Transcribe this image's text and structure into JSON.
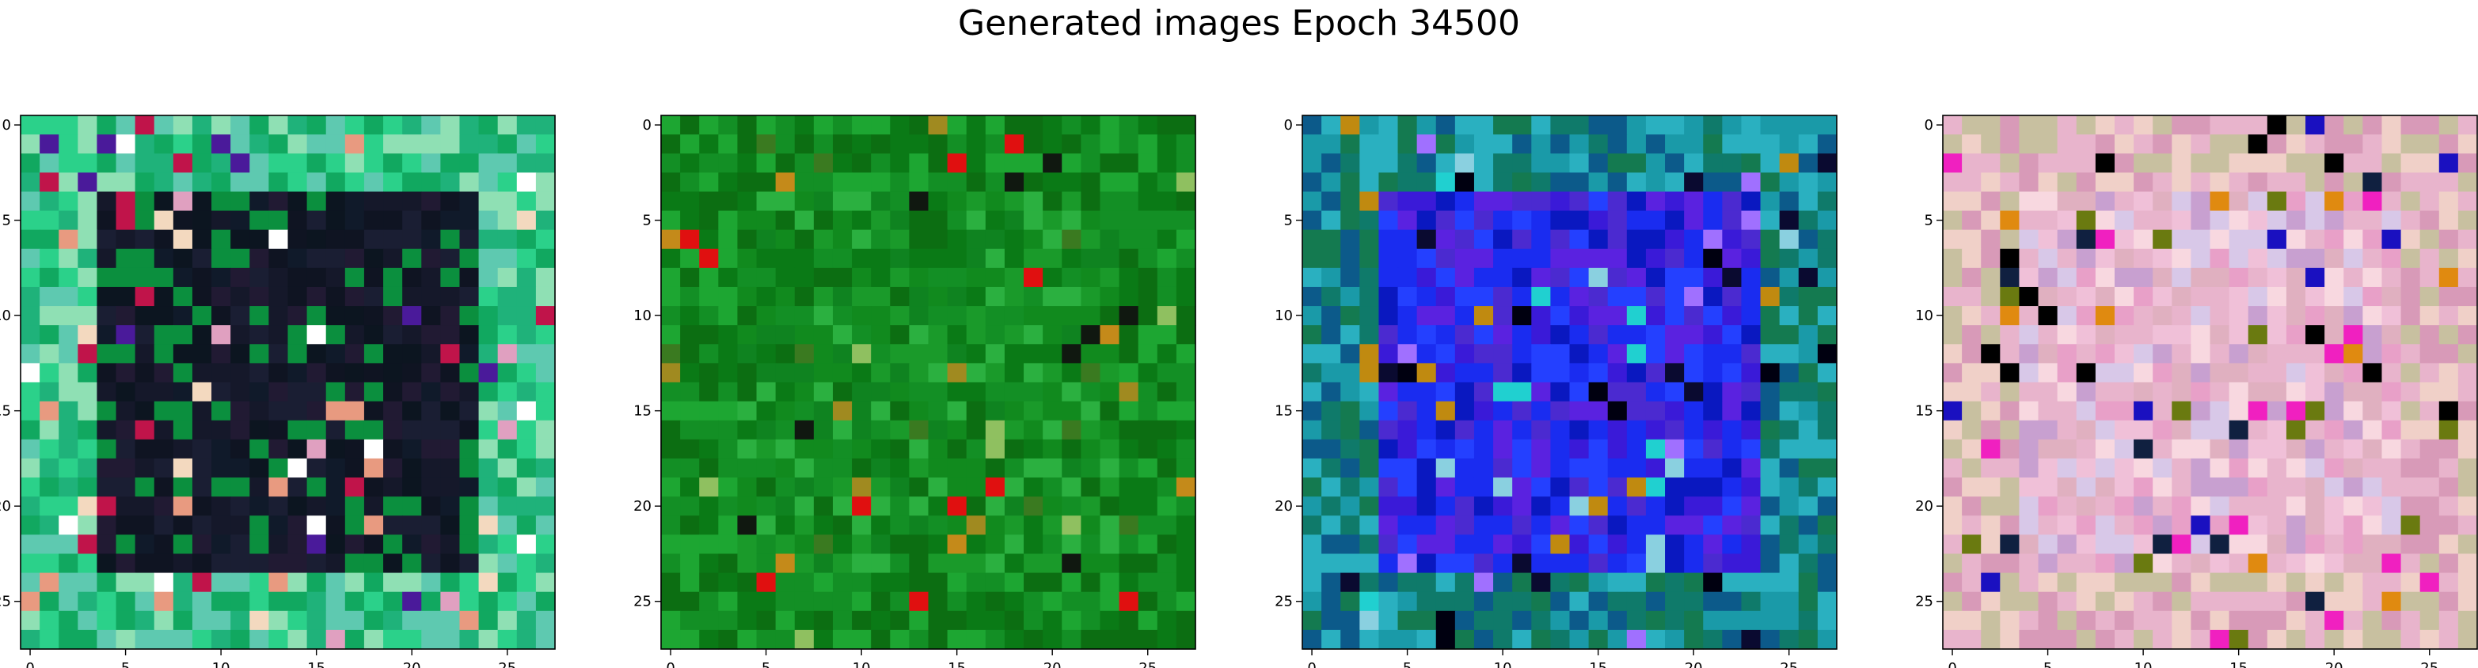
{
  "figure": {
    "title": "Generated images Epoch 34500"
  },
  "chart_data": [
    {
      "type": "heatmap",
      "grid_size": 28,
      "xlim": [
        -0.5,
        27.5
      ],
      "ylim": [
        27.5,
        -0.5
      ],
      "x_ticks": [
        0,
        5,
        10,
        15,
        20,
        25
      ],
      "y_ticks": [
        0,
        5,
        10,
        15,
        20,
        25
      ],
      "palette": {
        "dominant": "#0b8f3e",
        "border_band": [
          "#8fe0b4",
          "#2bd18a",
          "#11a860",
          "#5ec9b0",
          "#1fb27a"
        ],
        "interior": [
          "#0f1422",
          "#15182a",
          "#1a1e33",
          "#101a2a",
          "#211a33",
          "#0c1520"
        ],
        "accents": [
          "#f3d9bf",
          "#e89a80",
          "#c0144a",
          "#4a1a9a",
          "#ffffff",
          "#e0a0c0"
        ]
      }
    },
    {
      "type": "heatmap",
      "grid_size": 28,
      "xlim": [
        -0.5,
        27.5
      ],
      "ylim": [
        27.5,
        -0.5
      ],
      "x_ticks": [
        0,
        5,
        10,
        15,
        20,
        25
      ],
      "y_ticks": [
        0,
        5,
        10,
        15,
        20,
        25
      ],
      "palette": {
        "dominant": "#118a1e",
        "border_band": [
          "#0a7a16",
          "#138f25",
          "#0c6e12",
          "#1da632"
        ],
        "interior": [
          "#0a7a16",
          "#138f25",
          "#1a9a2a",
          "#0f8320",
          "#2bb040",
          "#0c6e12"
        ],
        "accents": [
          "#a08a20",
          "#c48a1a",
          "#e01010",
          "#101810",
          "#8fc060",
          "#3a7a20"
        ]
      }
    },
    {
      "type": "heatmap",
      "grid_size": 28,
      "xlim": [
        -0.5,
        27.5
      ],
      "ylim": [
        27.5,
        -0.5
      ],
      "x_ticks": [
        0,
        5,
        10,
        15,
        20,
        25
      ],
      "y_ticks": [
        0,
        5,
        10,
        15,
        20,
        25
      ],
      "palette": {
        "dominant": "#1a2cf0",
        "border_band": [
          "#0f7a6a",
          "#1a9aa8",
          "#0c5a8a",
          "#2ab0c0",
          "#147a50"
        ],
        "interior": [
          "#1a2cf0",
          "#3a1ad8",
          "#5a22e0",
          "#2440ff",
          "#4b2ad0",
          "#0a18c0"
        ],
        "accents": [
          "#000010",
          "#c08a10",
          "#8ad0e0",
          "#a070ff",
          "#0a0a30",
          "#20d0d0"
        ]
      }
    },
    {
      "type": "heatmap",
      "grid_size": 28,
      "xlim": [
        -0.5,
        27.5
      ],
      "ylim": [
        27.5,
        -0.5
      ],
      "x_ticks": [
        0,
        5,
        10,
        15,
        20,
        25
      ],
      "y_ticks": [
        0,
        5,
        10,
        15,
        20,
        25
      ],
      "palette": {
        "dominant": "#e8b4cc",
        "border_band": [
          "#e8b4cc",
          "#d89ab8",
          "#f0d0c8",
          "#c8c0a0"
        ],
        "interior": [
          "#f0c0d8",
          "#e8a0c8",
          "#d8c8e8",
          "#f8d8e0",
          "#e0b0c0",
          "#c8a0d0"
        ],
        "accents": [
          "#f020c0",
          "#102040",
          "#6a7a10",
          "#e08a10",
          "#1a10c0",
          "#000000"
        ]
      }
    }
  ]
}
